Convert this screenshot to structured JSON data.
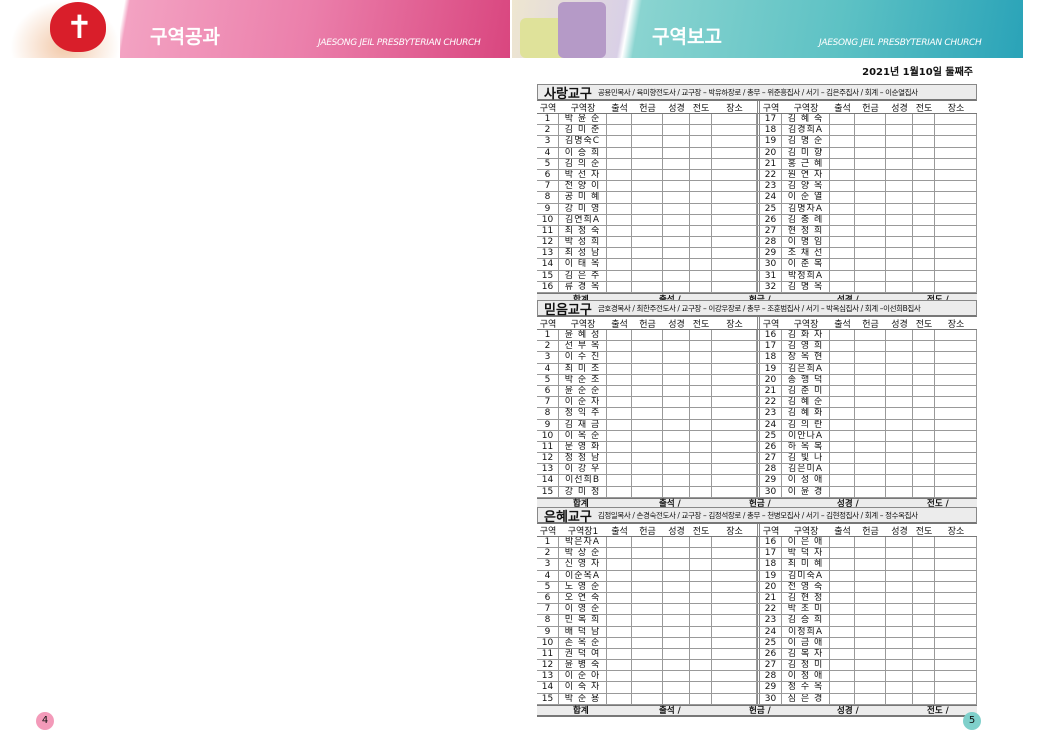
{
  "header": {
    "left_title": "구역공과",
    "left_sub": "JAESONG JEIL PRESBYTERIAN CHURCH",
    "right_title": "구역보고",
    "right_sub": "JAESONG JEIL PRESBYTERIAN CHURCH"
  },
  "date": "2021년  1월10일  둘째주",
  "colors": {
    "pink": "#eb7fab",
    "teal": "#5cc1c4"
  },
  "sections": [
    {
      "name": "사랑교구",
      "staff": "공용민목사 / 육미향전도사 / 교구장 – 박유하장로 / 총무 – 위준흥집사 / 서기 – 김은주집사 / 회계 – 이순열집사",
      "headers_left": [
        "구역",
        "구역장",
        "출석",
        "헌금",
        "성경",
        "전도",
        "장소"
      ],
      "headers_right": [
        "구역",
        "구역장",
        "출석",
        "헌금",
        "성경",
        "전도",
        "장소"
      ],
      "left": [
        [
          "1",
          "박 윤 순"
        ],
        [
          "2",
          "김 미 준"
        ],
        [
          "3",
          "김명숙C"
        ],
        [
          "4",
          "이 승 희"
        ],
        [
          "5",
          "김 의 순"
        ],
        [
          "6",
          "박 선 자"
        ],
        [
          "7",
          "전 양 이"
        ],
        [
          "8",
          "공 미 혜"
        ],
        [
          "9",
          "강 미 영"
        ],
        [
          "10",
          "김연희A"
        ],
        [
          "11",
          "최 정 숙"
        ],
        [
          "12",
          "박 성 희"
        ],
        [
          "13",
          "최 성 남"
        ],
        [
          "14",
          "이 태 옥"
        ],
        [
          "15",
          "김 은 주"
        ],
        [
          "16",
          "류 경 옥"
        ]
      ],
      "right": [
        [
          "17",
          "김 혜 숙"
        ],
        [
          "18",
          "김경희A"
        ],
        [
          "19",
          "김 명 순"
        ],
        [
          "20",
          "김 미 향"
        ],
        [
          "21",
          "홍 근 혜"
        ],
        [
          "22",
          "원 연 자"
        ],
        [
          "23",
          "김 양 옥"
        ],
        [
          "24",
          "이 순 열"
        ],
        [
          "25",
          "김명자A"
        ],
        [
          "26",
          "김 충 례"
        ],
        [
          "27",
          "현 정 희"
        ],
        [
          "28",
          "이 명 임"
        ],
        [
          "29",
          "조 채 선"
        ],
        [
          "30",
          "이 춘 복"
        ],
        [
          "31",
          "박정희A"
        ],
        [
          "32",
          "김 명 옥"
        ]
      ],
      "totals": [
        "합계",
        "출석 /",
        "헌금 /",
        "성경 /",
        "전도 /"
      ]
    },
    {
      "name": "믿음교구",
      "staff": "금호경목사 / 최한주전도사 / 교구장 – 이강우장로 / 총무 – 조훈범집사 / 서기 – 박옥심집사 / 회계 –이선희B집사",
      "headers_left": [
        "구역",
        "구역장",
        "출석",
        "헌금",
        "성경",
        "전도",
        "장소"
      ],
      "headers_right": [
        "구역",
        "구역장",
        "출석",
        "헌금",
        "성경",
        "전도",
        "장소"
      ],
      "left": [
        [
          "1",
          "윤 혜 성"
        ],
        [
          "2",
          "선 부 옥"
        ],
        [
          "3",
          "이 수 진"
        ],
        [
          "4",
          "최 미 조"
        ],
        [
          "5",
          "박 순 조"
        ],
        [
          "6",
          "윤 순 순"
        ],
        [
          "7",
          "이 순 자"
        ],
        [
          "8",
          "정 익 주"
        ],
        [
          "9",
          "김 재 금"
        ],
        [
          "10",
          "이 옥 순"
        ],
        [
          "11",
          "문 영 화"
        ],
        [
          "12",
          "정 정 남"
        ],
        [
          "13",
          "이 강 우"
        ],
        [
          "14",
          "이선희B"
        ],
        [
          "15",
          "강 미 정"
        ]
      ],
      "right": [
        [
          "16",
          "김 화 자"
        ],
        [
          "17",
          "김 영 희"
        ],
        [
          "18",
          "장 옥 현"
        ],
        [
          "19",
          "김은희A"
        ],
        [
          "20",
          "송 행 덕"
        ],
        [
          "21",
          "김 춘 미"
        ],
        [
          "22",
          "김 혜 순"
        ],
        [
          "23",
          "김 혜 화"
        ],
        [
          "24",
          "김 의 란"
        ],
        [
          "25",
          "이안나A"
        ],
        [
          "26",
          "하 옥 복"
        ],
        [
          "27",
          "김 빛 나"
        ],
        [
          "28",
          "김은미A"
        ],
        [
          "29",
          "이 성 애"
        ],
        [
          "30",
          "이 윤 경"
        ]
      ],
      "totals": [
        "합계",
        "출석 /",
        "헌금 /",
        "성경 /",
        "전도 /"
      ]
    },
    {
      "name": "은혜교구",
      "staff": "김정일목사 / 손경숙전도사 / 교구장 – 김정석장로 / 총무 – 천병모집사 / 서기 – 김현정집사 / 회계 – 정수옥집사",
      "headers_left": [
        "구역",
        "구역장1",
        "출석",
        "헌금",
        "성경",
        "전도",
        "장소"
      ],
      "headers_right": [
        "구역",
        "구역장",
        "출석",
        "헌금",
        "성경",
        "전도",
        "장소"
      ],
      "left": [
        [
          "1",
          "박은자A"
        ],
        [
          "2",
          "박 상 순"
        ],
        [
          "3",
          "신 영 자"
        ],
        [
          "4",
          "이순옥A"
        ],
        [
          "5",
          "노 영 순"
        ],
        [
          "6",
          "오 연 숙"
        ],
        [
          "7",
          "이 영 순"
        ],
        [
          "8",
          "민 복 희"
        ],
        [
          "9",
          "배 덕 남"
        ],
        [
          "10",
          "손 옥 순"
        ],
        [
          "11",
          "권 덕 여"
        ],
        [
          "12",
          "윤 병 숙"
        ],
        [
          "13",
          "이 순 아"
        ],
        [
          "14",
          "이 숙 자"
        ],
        [
          "15",
          "박 순 용"
        ]
      ],
      "right": [
        [
          "16",
          "이 은 애"
        ],
        [
          "17",
          "박 덕 자"
        ],
        [
          "18",
          "최 미 혜"
        ],
        [
          "19",
          "김미숙A"
        ],
        [
          "20",
          "전 영 숙"
        ],
        [
          "21",
          "김 현 정"
        ],
        [
          "22",
          "박 초 미"
        ],
        [
          "23",
          "김 승 희"
        ],
        [
          "24",
          "이정희A"
        ],
        [
          "25",
          "이 금 애"
        ],
        [
          "26",
          "김 복 자"
        ],
        [
          "27",
          "김 정 미"
        ],
        [
          "28",
          "이 정 애"
        ],
        [
          "29",
          "정 수 옥"
        ],
        [
          "30",
          "심 은 경"
        ]
      ],
      "totals": [
        "합계",
        "출석 /",
        "헌금 /",
        "성경 /",
        "전도 /"
      ]
    }
  ],
  "pages": {
    "left": "4",
    "right": "5"
  }
}
